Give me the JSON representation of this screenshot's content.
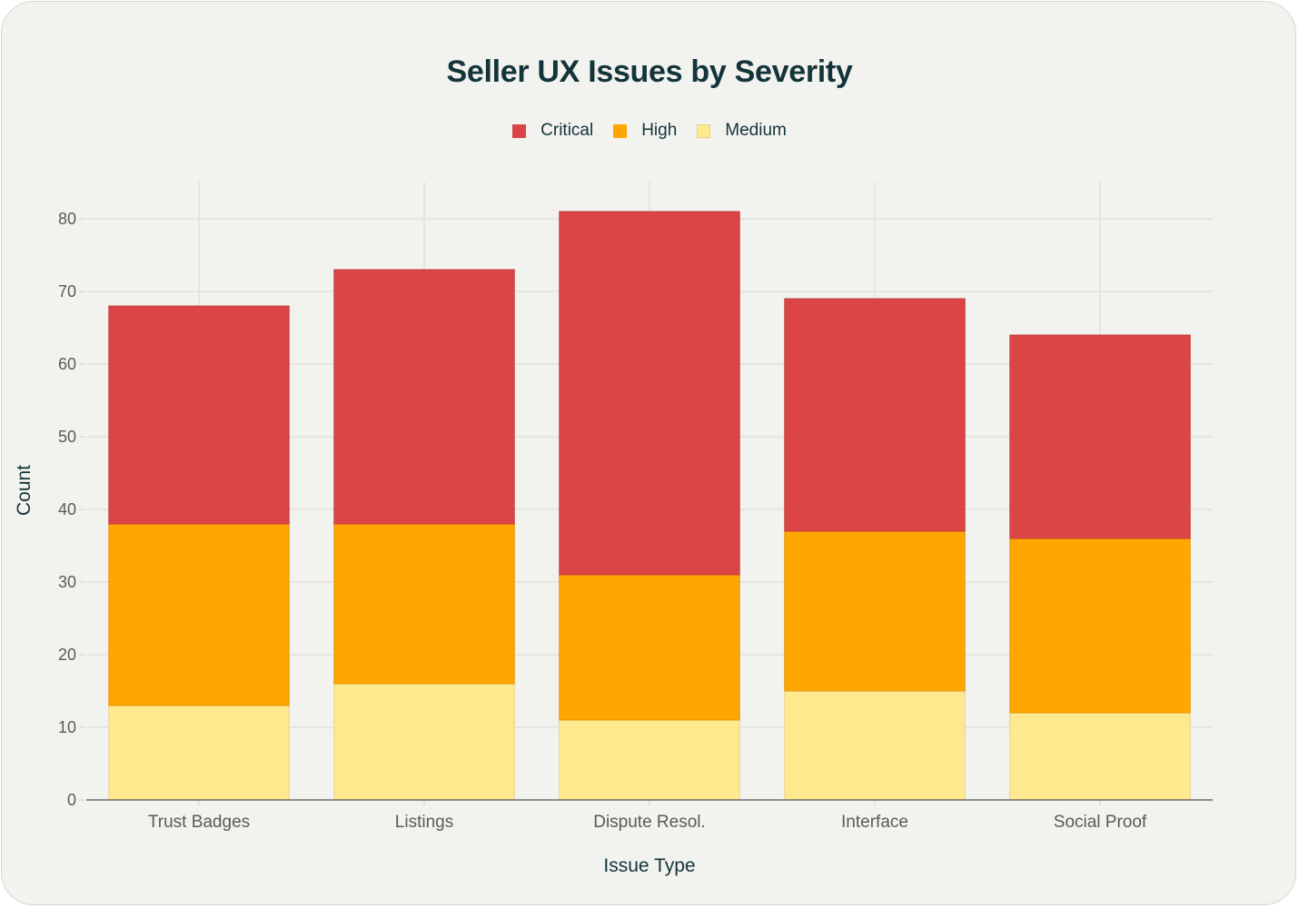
{
  "chart_data": {
    "type": "bar",
    "stacked": true,
    "title": "Seller UX Issues by Severity",
    "xlabel": "Issue Type",
    "ylabel": "Count",
    "categories": [
      "Trust Badges",
      "Listings",
      "Dispute Resol.",
      "Interface",
      "Social Proof"
    ],
    "series": [
      {
        "name": "Medium",
        "color": "#ffe98f",
        "values": [
          13,
          16,
          11,
          15,
          12
        ]
      },
      {
        "name": "High",
        "color": "#ffa600",
        "values": [
          25,
          22,
          20,
          22,
          24
        ]
      },
      {
        "name": "Critical",
        "color": "#db4545",
        "values": [
          30,
          35,
          50,
          32,
          28
        ]
      }
    ],
    "legend_order": [
      "Critical",
      "High",
      "Medium"
    ],
    "ylim": [
      0,
      85
    ],
    "yticks": [
      0,
      10,
      20,
      30,
      40,
      50,
      60,
      70,
      80
    ],
    "grid": true,
    "legend_position": "top-center"
  }
}
